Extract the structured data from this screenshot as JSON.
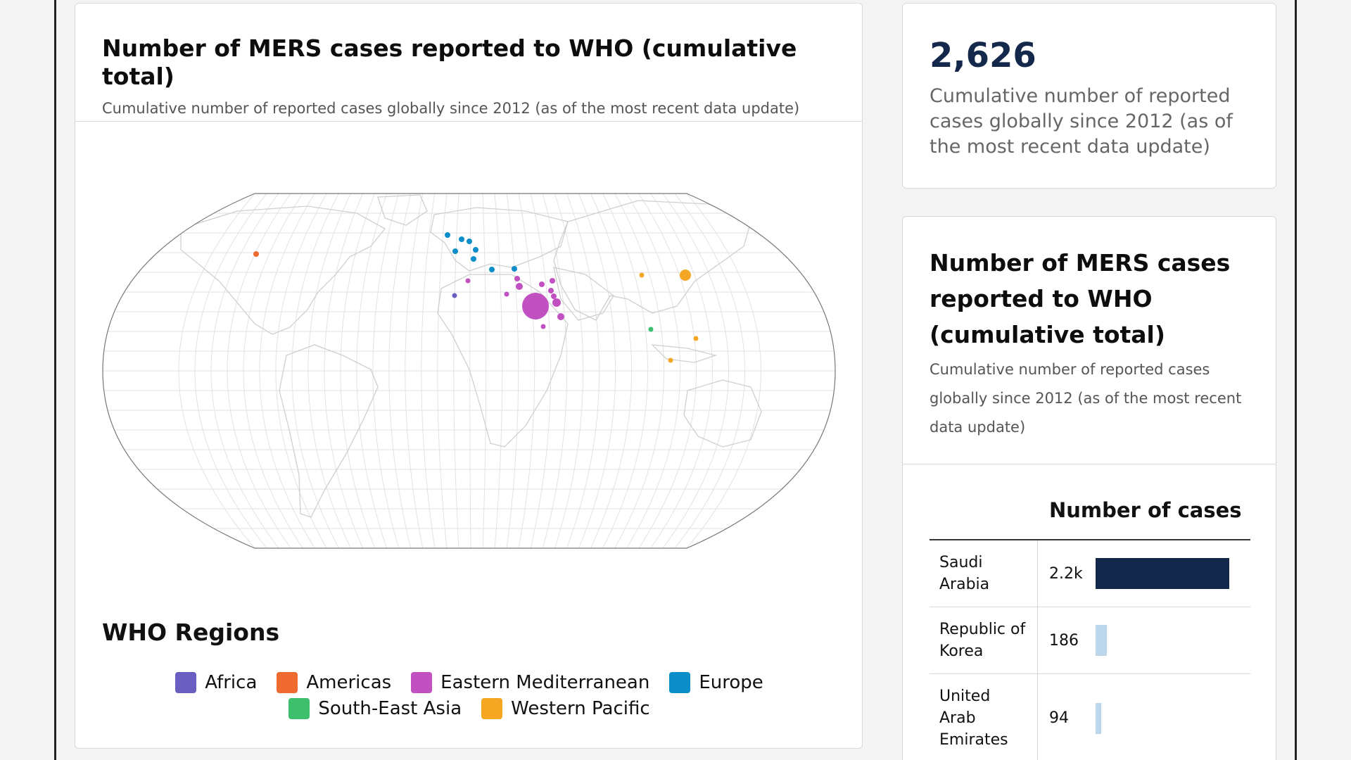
{
  "map_card": {
    "title": "Number of MERS cases reported to WHO (cumulative total)",
    "subtitle": "Cumulative number of reported cases globally since 2012 (as of the most recent data update)",
    "legend_title": "WHO Regions",
    "legend": [
      {
        "label": "Africa",
        "color": "#6a5fc1"
      },
      {
        "label": "Americas",
        "color": "#ef6a2e"
      },
      {
        "label": "Eastern Mediterranean",
        "color": "#c150c0"
      },
      {
        "label": "Europe",
        "color": "#0b8ec9"
      },
      {
        "label": "South-East Asia",
        "color": "#3dbf6e"
      },
      {
        "label": "Western Pacific",
        "color": "#f5a623"
      }
    ]
  },
  "stat_card": {
    "value": "2,626",
    "description": "Cumulative number of reported cases globally since 2012 (as of the most recent data update)"
  },
  "bar_card": {
    "title": "Number of MERS cases reported to WHO (cumulative total)",
    "subtitle": "Cumulative number of reported cases globally since 2012 (as of the most recent data update)",
    "column_header": "Number of cases",
    "rows": [
      {
        "country": "Saudi Arabia",
        "label": "2.2k",
        "value": 2200,
        "color": "#14284b"
      },
      {
        "country": "Republic of Korea",
        "label": "186",
        "value": 186,
        "color": "#bcd6ec"
      },
      {
        "country": "United Arab Emirates",
        "label": "94",
        "value": 94,
        "color": "#bcd6ec"
      }
    ]
  }
}
